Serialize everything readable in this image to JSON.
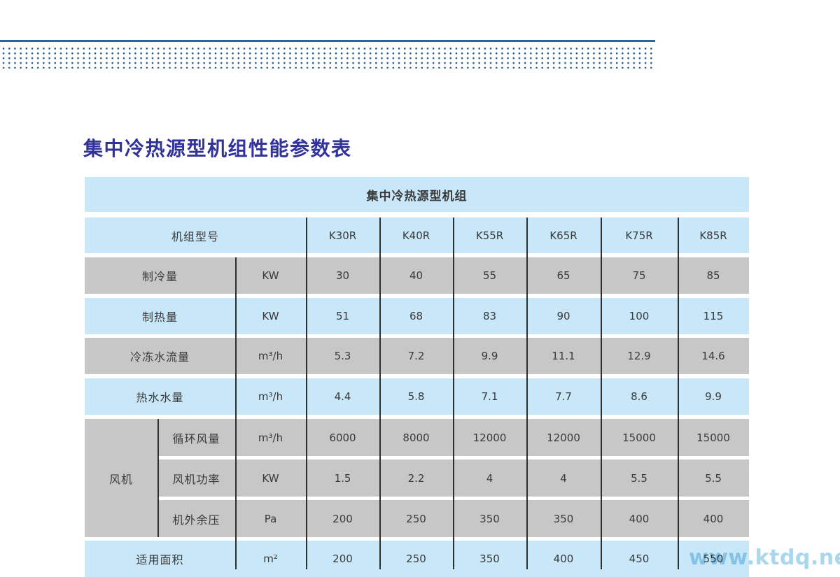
{
  "page": {
    "title": "集中冷热源型机组性能参数表",
    "watermark": "www.ktdq.net"
  },
  "table": {
    "header": "集中冷热源型机组",
    "model_label": "机组型号",
    "models": [
      "K30R",
      "K40R",
      "K55R",
      "K65R",
      "K75R",
      "K85R"
    ],
    "rows": [
      {
        "label": "制冷量",
        "unit": "KW",
        "values": [
          "30",
          "40",
          "55",
          "65",
          "75",
          "85"
        ]
      },
      {
        "label": "制热量",
        "unit": "KW",
        "values": [
          "51",
          "68",
          "83",
          "90",
          "100",
          "115"
        ]
      },
      {
        "label": "冷冻水流量",
        "unit": "m³/h",
        "values": [
          "5.3",
          "7.2",
          "9.9",
          "11.1",
          "12.9",
          "14.6"
        ]
      },
      {
        "label": "热水水量",
        "unit": "m³/h",
        "values": [
          "4.4",
          "5.8",
          "7.1",
          "7.7",
          "8.6",
          "9.9"
        ]
      }
    ],
    "fan_group": {
      "label": "风机",
      "rows": [
        {
          "label": "循环风量",
          "unit": "m³/h",
          "values": [
            "6000",
            "8000",
            "12000",
            "12000",
            "15000",
            "15000"
          ]
        },
        {
          "label": "风机功率",
          "unit": "KW",
          "values": [
            "1.5",
            "2.2",
            "4",
            "4",
            "5.5",
            "5.5"
          ]
        },
        {
          "label": "机外余压",
          "unit": "Pa",
          "values": [
            "200",
            "250",
            "350",
            "350",
            "400",
            "400"
          ]
        }
      ]
    },
    "footer_row": {
      "label": "适用面积",
      "unit": "m²",
      "values": [
        "200",
        "250",
        "350",
        "400",
        "450",
        "550"
      ]
    }
  },
  "colors": {
    "accent_blue": "#2b639c",
    "row_blue": "#c8e7f8",
    "row_gray": "#c7c7c8",
    "title_blue": "#32329b",
    "divider": "#2f2f2f",
    "watermark_blue": "#a9d7ec"
  }
}
